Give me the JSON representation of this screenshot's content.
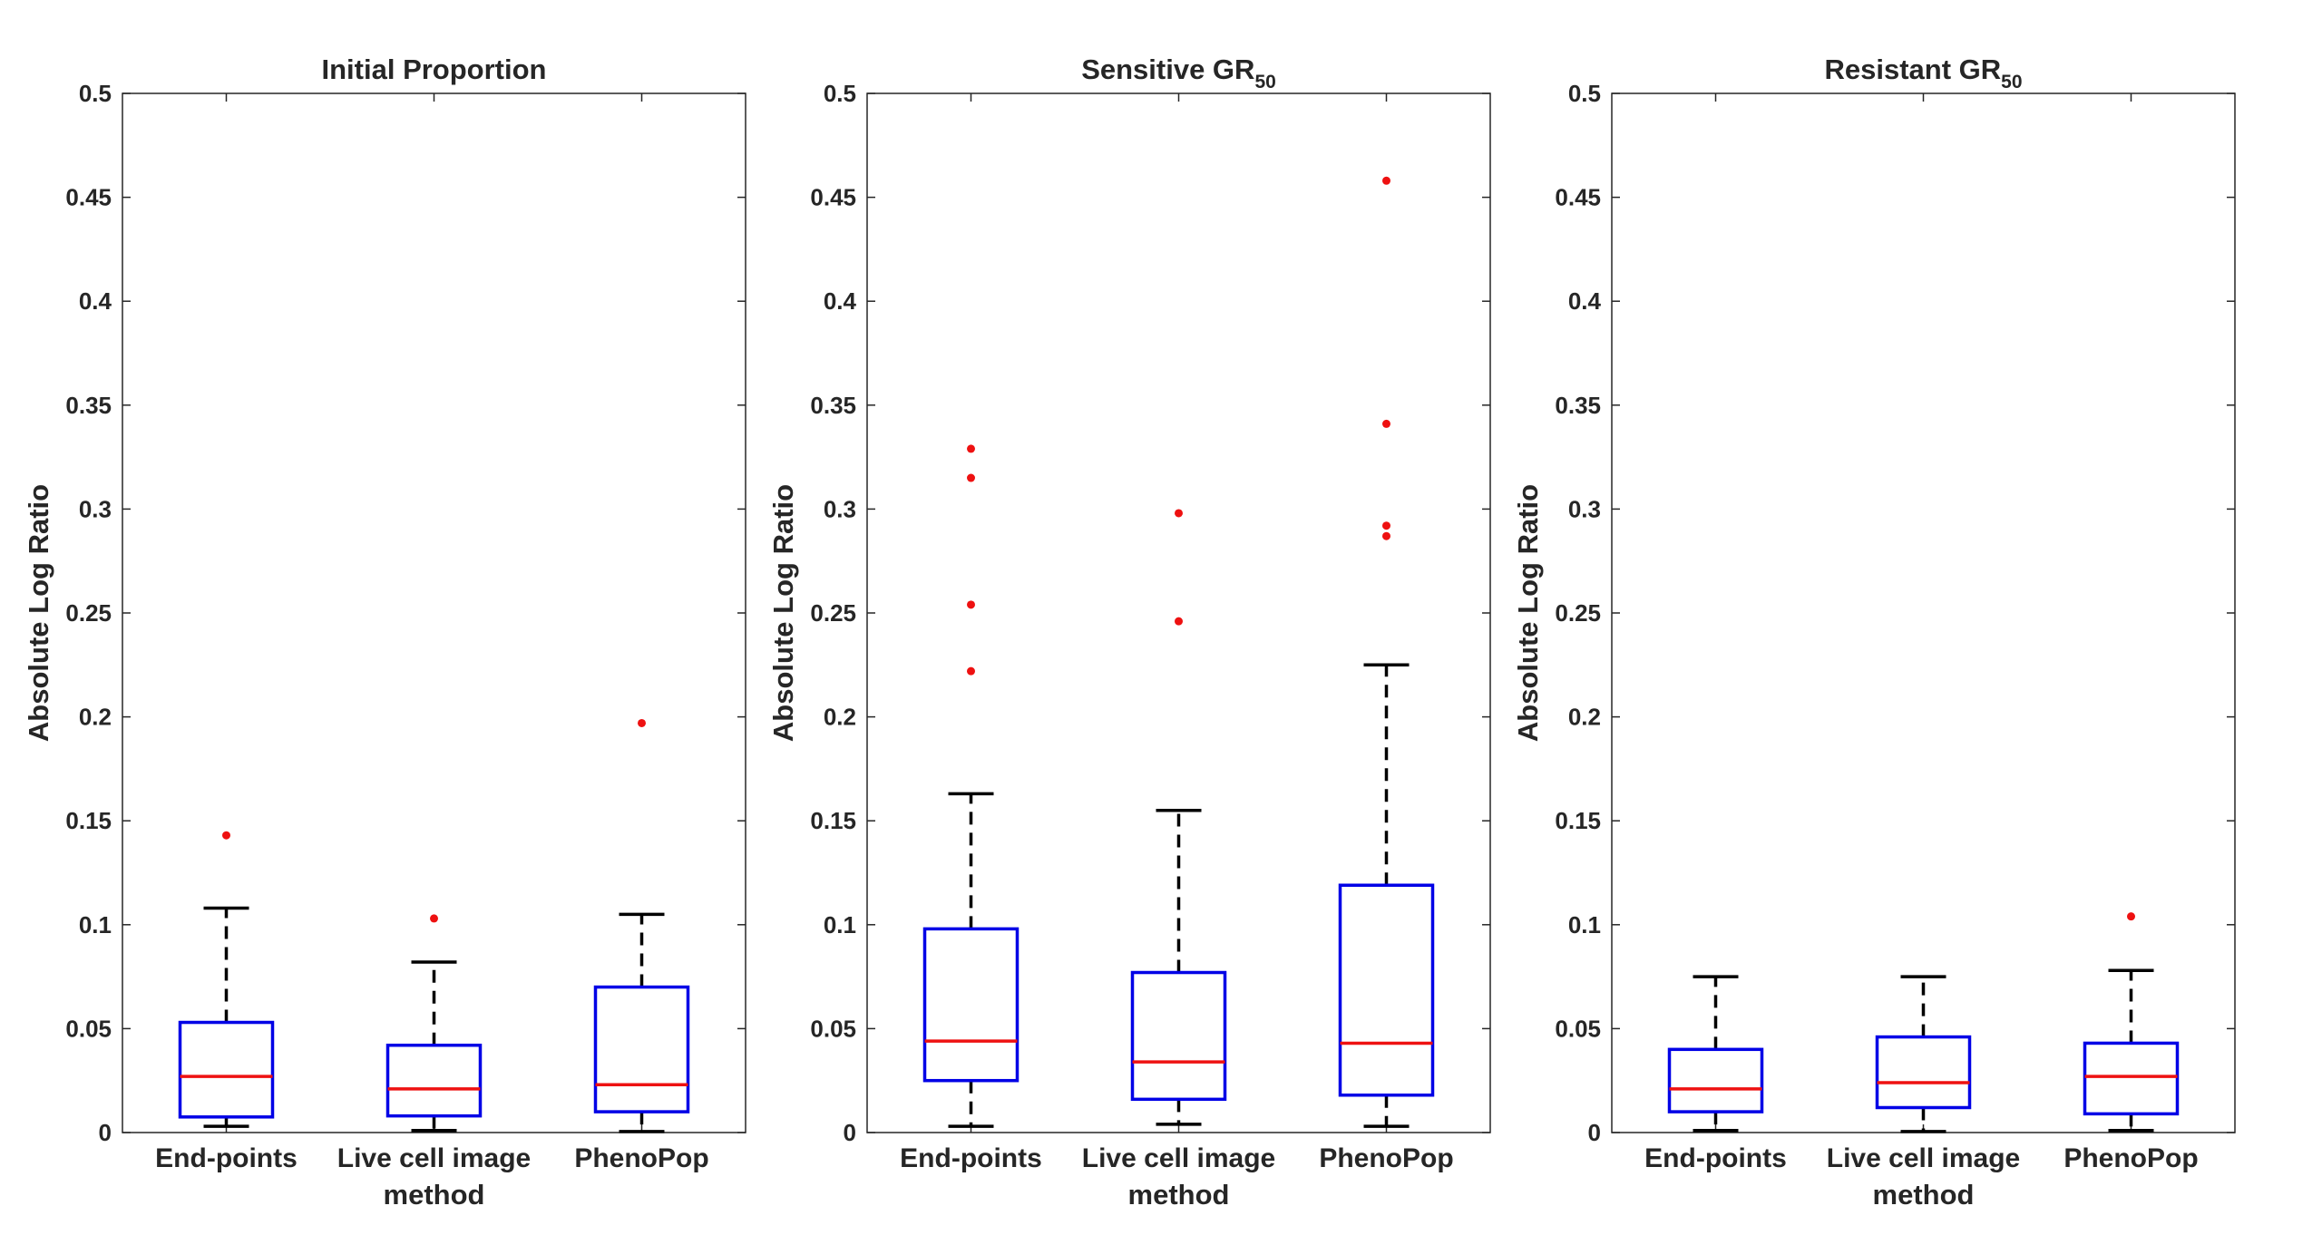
{
  "chart_data": [
    {
      "type": "boxplot",
      "title": "Initial Proportion",
      "title_sub": "",
      "ylabel": "Absolute Log Ratio",
      "xlabel": "method",
      "ylim": [
        0,
        0.5
      ],
      "yticks": [
        0,
        0.05,
        0.1,
        0.15,
        0.2,
        0.25,
        0.3,
        0.35,
        0.4,
        0.45,
        0.5
      ],
      "ytick_labels": [
        "0",
        "0.05",
        "0.1",
        "0.15",
        "0.2",
        "0.25",
        "0.3",
        "0.35",
        "0.4",
        "0.45",
        "0.5"
      ],
      "categories": [
        "End-points",
        "Live cell image",
        "PhenoPop"
      ],
      "boxes": [
        {
          "whisker_low": 0.003,
          "q1": 0.0075,
          "median": 0.027,
          "q3": 0.053,
          "whisker_high": 0.108,
          "outliers": [
            0.143
          ]
        },
        {
          "whisker_low": 0.001,
          "q1": 0.008,
          "median": 0.021,
          "q3": 0.042,
          "whisker_high": 0.082,
          "outliers": [
            0.103
          ]
        },
        {
          "whisker_low": 0.0005,
          "q1": 0.01,
          "median": 0.023,
          "q3": 0.07,
          "whisker_high": 0.105,
          "outliers": [
            0.197
          ]
        }
      ]
    },
    {
      "type": "boxplot",
      "title": "Sensitive GR",
      "title_sub": "50",
      "ylabel": "Absolute Log Ratio",
      "xlabel": "method",
      "ylim": [
        0,
        0.5
      ],
      "yticks": [
        0,
        0.05,
        0.1,
        0.15,
        0.2,
        0.25,
        0.3,
        0.35,
        0.4,
        0.45,
        0.5
      ],
      "ytick_labels": [
        "0",
        "0.05",
        "0.1",
        "0.15",
        "0.2",
        "0.25",
        "0.3",
        "0.35",
        "0.4",
        "0.45",
        "0.5"
      ],
      "categories": [
        "End-points",
        "Live cell image",
        "PhenoPop"
      ],
      "boxes": [
        {
          "whisker_low": 0.003,
          "q1": 0.025,
          "median": 0.044,
          "q3": 0.098,
          "whisker_high": 0.163,
          "outliers": [
            0.222,
            0.254,
            0.315,
            0.329
          ]
        },
        {
          "whisker_low": 0.004,
          "q1": 0.016,
          "median": 0.034,
          "q3": 0.077,
          "whisker_high": 0.155,
          "outliers": [
            0.246,
            0.298
          ]
        },
        {
          "whisker_low": 0.003,
          "q1": 0.018,
          "median": 0.043,
          "q3": 0.119,
          "whisker_high": 0.225,
          "outliers": [
            0.287,
            0.292,
            0.341,
            0.458
          ]
        }
      ]
    },
    {
      "type": "boxplot",
      "title": "Resistant GR",
      "title_sub": "50",
      "ylabel": "Absolute Log Ratio",
      "xlabel": "method",
      "ylim": [
        0,
        0.5
      ],
      "yticks": [
        0,
        0.05,
        0.1,
        0.15,
        0.2,
        0.25,
        0.3,
        0.35,
        0.4,
        0.45,
        0.5
      ],
      "ytick_labels": [
        "0",
        "0.05",
        "0.1",
        "0.15",
        "0.2",
        "0.25",
        "0.3",
        "0.35",
        "0.4",
        "0.45",
        "0.5"
      ],
      "categories": [
        "End-points",
        "Live cell image",
        "PhenoPop"
      ],
      "boxes": [
        {
          "whisker_low": 0.001,
          "q1": 0.01,
          "median": 0.021,
          "q3": 0.04,
          "whisker_high": 0.075,
          "outliers": []
        },
        {
          "whisker_low": 0.0005,
          "q1": 0.012,
          "median": 0.024,
          "q3": 0.046,
          "whisker_high": 0.075,
          "outliers": []
        },
        {
          "whisker_low": 0.001,
          "q1": 0.009,
          "median": 0.027,
          "q3": 0.043,
          "whisker_high": 0.078,
          "outliers": [
            0.104
          ]
        }
      ]
    }
  ],
  "colors": {
    "box": "#0000e6",
    "median": "#ee1111",
    "whisker": "#000000",
    "outlier": "#ee1111",
    "axis": "#262626"
  }
}
